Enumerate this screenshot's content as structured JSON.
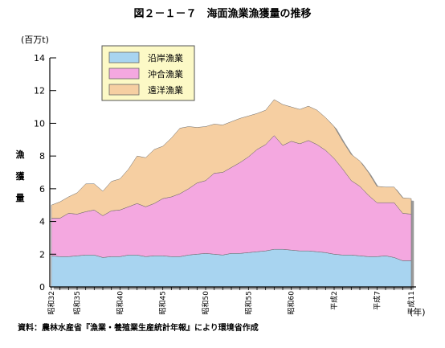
{
  "chart_data": {
    "type": "area",
    "stacked": true,
    "title": "図２－１－７　海面漁業漁獲量の推移",
    "y_unit_label": "(百万t)",
    "ylabel_chars": [
      "漁",
      "獲",
      "量"
    ],
    "x_unit_label": "(年)",
    "ylim": [
      0,
      14
    ],
    "yticks": [
      0,
      2,
      4,
      6,
      8,
      10,
      12,
      14
    ],
    "x_range": [
      1957,
      1999
    ],
    "xtick_labels": [
      {
        "year": 1957,
        "label": "昭和32"
      },
      {
        "year": 1960,
        "label": "昭和35"
      },
      {
        "year": 1965,
        "label": "昭和40"
      },
      {
        "year": 1970,
        "label": "昭和45"
      },
      {
        "year": 1975,
        "label": "昭和50"
      },
      {
        "year": 1980,
        "label": "昭和55"
      },
      {
        "year": 1985,
        "label": "昭和60"
      },
      {
        "year": 1990,
        "label": "平成2"
      },
      {
        "year": 1995,
        "label": "平成7"
      },
      {
        "year": 1999,
        "label": "平成11"
      }
    ],
    "x": [
      1957,
      1958,
      1959,
      1960,
      1961,
      1962,
      1963,
      1964,
      1965,
      1966,
      1967,
      1968,
      1969,
      1970,
      1971,
      1972,
      1973,
      1974,
      1975,
      1976,
      1977,
      1978,
      1979,
      1980,
      1981,
      1982,
      1983,
      1984,
      1985,
      1986,
      1987,
      1988,
      1989,
      1990,
      1991,
      1992,
      1993,
      1994,
      1995,
      1996,
      1997,
      1998,
      1999
    ],
    "series": [
      {
        "name": "沿岸漁業",
        "color": "#a8d4f0",
        "values": [
          1.9,
          1.85,
          1.85,
          1.9,
          1.95,
          1.95,
          1.8,
          1.85,
          1.85,
          1.95,
          1.95,
          1.85,
          1.9,
          1.9,
          1.85,
          1.85,
          1.95,
          2.0,
          2.05,
          2.0,
          1.95,
          2.05,
          2.05,
          2.1,
          2.15,
          2.2,
          2.3,
          2.3,
          2.25,
          2.2,
          2.2,
          2.15,
          2.1,
          2.0,
          1.95,
          1.95,
          1.9,
          1.85,
          1.85,
          1.9,
          1.8,
          1.6,
          1.6
        ]
      },
      {
        "name": "沖合漁業",
        "color": "#f4a8e0",
        "values": [
          2.3,
          2.35,
          2.65,
          2.55,
          2.65,
          2.75,
          2.55,
          2.8,
          2.85,
          2.95,
          3.15,
          3.05,
          3.2,
          3.5,
          3.65,
          3.85,
          4.05,
          4.35,
          4.45,
          4.95,
          5.05,
          5.25,
          5.55,
          5.85,
          6.25,
          6.5,
          6.95,
          6.35,
          6.65,
          6.55,
          6.75,
          6.55,
          6.25,
          5.85,
          5.25,
          4.55,
          4.25,
          3.75,
          3.3,
          3.25,
          3.35,
          2.9,
          2.85
        ]
      },
      {
        "name": "遠洋漁業",
        "color": "#f6cfa2",
        "values": [
          0.8,
          1.0,
          1.0,
          1.3,
          1.7,
          1.6,
          1.5,
          1.8,
          1.9,
          2.3,
          2.9,
          3.0,
          3.3,
          3.2,
          3.6,
          4.0,
          3.8,
          3.4,
          3.3,
          3.0,
          2.9,
          2.8,
          2.7,
          2.5,
          2.2,
          2.1,
          2.2,
          2.5,
          2.1,
          2.1,
          2.1,
          2.1,
          2.0,
          1.95,
          1.7,
          1.6,
          1.55,
          1.4,
          1.0,
          0.95,
          0.95,
          0.95,
          0.95
        ]
      }
    ]
  },
  "source_note": "資料：農林水産省『漁業・養殖業生産統計年報』により環境省作成"
}
